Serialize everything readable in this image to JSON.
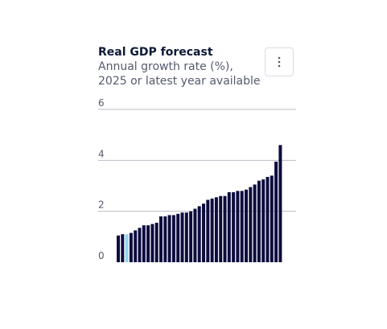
{
  "header": {
    "title": "Real GDP forecast",
    "subtitle": "Annual growth rate (%), 2025 or latest year available",
    "menu_icon": "vertical-ellipsis-icon"
  },
  "colors": {
    "bar": "#0c0c3e",
    "highlight": "#8fd6f0",
    "grid": "#b8bcc6",
    "axis_text": "#555b6e",
    "title": "#0c1a36"
  },
  "chart_data": {
    "type": "bar",
    "title": "Real GDP forecast",
    "subtitle": "Annual growth rate (%), 2025 or latest year available",
    "xlabel": "",
    "ylabel": "",
    "ylim": [
      0,
      6
    ],
    "yticks": [
      "0",
      "2",
      "4",
      "6"
    ],
    "grid": true,
    "highlight_index": 2,
    "values": [
      1.05,
      1.1,
      1.1,
      1.15,
      1.25,
      1.35,
      1.45,
      1.45,
      1.5,
      1.55,
      1.8,
      1.8,
      1.85,
      1.85,
      1.9,
      1.95,
      1.95,
      2.0,
      2.1,
      2.2,
      2.3,
      2.45,
      2.5,
      2.55,
      2.6,
      2.6,
      2.75,
      2.75,
      2.8,
      2.8,
      2.85,
      2.95,
      3.05,
      3.2,
      3.25,
      3.35,
      3.4,
      3.95,
      4.6
    ]
  }
}
